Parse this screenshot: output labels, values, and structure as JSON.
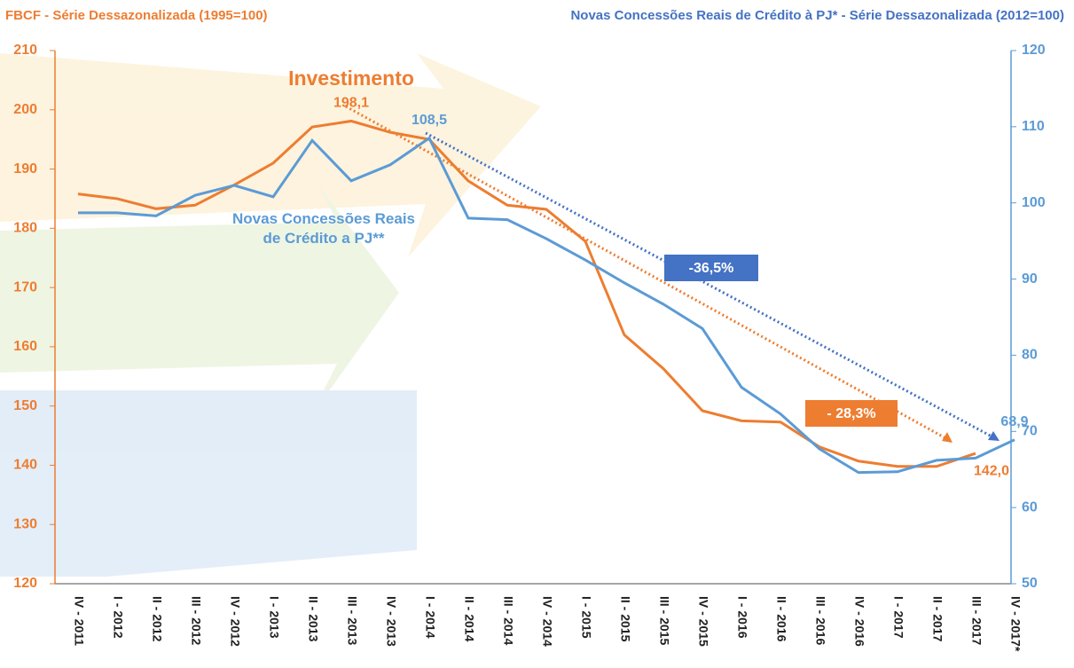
{
  "chart_data": {
    "type": "line",
    "y_label": "FBCF - Série Dessazonalizada (1995=100)",
    "y2_label": "Novas Concessões Reais de Crédito à PJ* - Série Dessazonalizada (2012=100)",
    "categories": [
      "IV - 2011",
      "I - 2012",
      "II - 2012",
      "III - 2012",
      "IV - 2012",
      "I - 2013",
      "II - 2013",
      "III - 2013",
      "IV - 2013",
      "I - 2014",
      "II - 2014",
      "III - 2014",
      "IV - 2014",
      "I - 2015",
      "II - 2015",
      "III - 2015",
      "IV - 2015",
      "I - 2016",
      "II - 2016",
      "III - 2016",
      "IV - 2016",
      "I - 2017",
      "II - 2017",
      "III - 2017",
      "IV - 2017*"
    ],
    "series": [
      {
        "name": "Investimento",
        "color": "#ed7d31",
        "values": [
          185.8,
          185.0,
          183.3,
          183.9,
          187.3,
          191.0,
          197.1,
          198.1,
          196.2,
          195.0,
          188.0,
          183.9,
          183.2,
          177.8,
          162.0,
          156.3,
          149.2,
          147.5,
          147.3,
          143.1,
          140.7,
          139.8,
          139.8,
          142.0,
          null
        ],
        "value_labels": [
          null,
          null,
          null,
          null,
          null,
          null,
          null,
          "198,1",
          null,
          null,
          null,
          null,
          null,
          null,
          null,
          null,
          null,
          null,
          null,
          null,
          null,
          null,
          null,
          "142,0",
          null
        ]
      },
      {
        "name": "Novas Concessões Reais de Crédito a PJ**",
        "color": "#5b9bd5",
        "axis": "y2",
        "values": [
          98.7,
          98.7,
          98.3,
          101.0,
          102.3,
          100.8,
          108.2,
          102.9,
          105.0,
          108.5,
          98.0,
          97.8,
          95.3,
          92.5,
          89.5,
          86.7,
          83.5,
          75.8,
          72.3,
          67.7,
          64.6,
          64.7,
          66.2,
          66.5,
          68.9
        ],
        "value_labels": [
          null,
          null,
          null,
          null,
          null,
          null,
          null,
          null,
          null,
          "108,5",
          null,
          null,
          null,
          null,
          null,
          null,
          null,
          null,
          null,
          null,
          null,
          null,
          null,
          null,
          "68,9"
        ]
      }
    ],
    "annotations": [
      "-36,5%",
      "- 28,3%"
    ],
    "ylim": [
      120,
      210
    ],
    "yticks": [
      120,
      130,
      140,
      150,
      160,
      170,
      180,
      190,
      200,
      210
    ],
    "y2lim": [
      50,
      120
    ],
    "y2ticks": [
      50,
      60,
      70,
      80,
      90,
      100,
      110,
      120
    ]
  }
}
